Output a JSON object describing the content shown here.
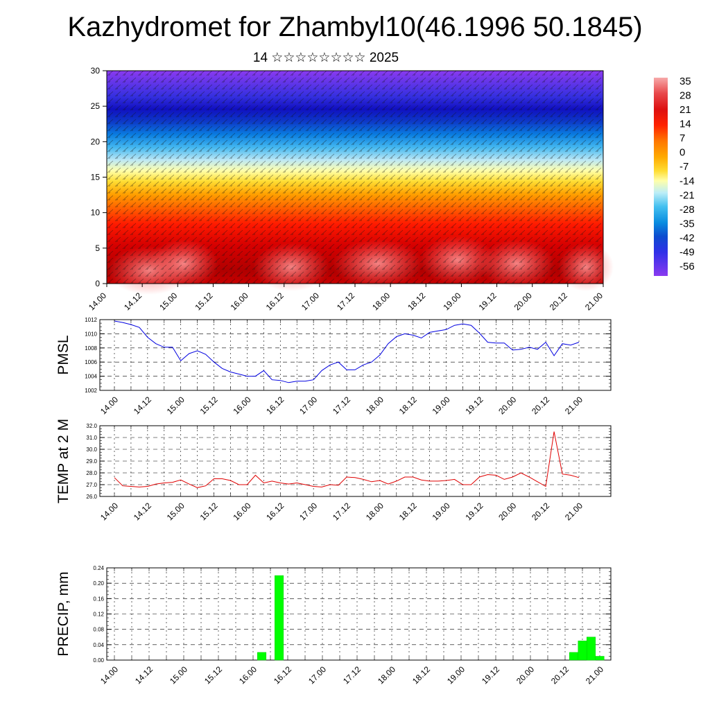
{
  "title": "Kazhydromet for Zhambyl10(46.1996 50.1845)",
  "subtitle": "14 ☆☆☆☆☆☆☆☆ 2025",
  "colors": {
    "pmsl_line": "#0000e0",
    "temp_line": "#e00000",
    "precip_bar": "#00ff00"
  },
  "chart_data": [
    {
      "type": "heatmap",
      "name": "cross-section",
      "ylim": [
        0,
        30
      ],
      "y_ticks": [
        0,
        5,
        10,
        15,
        20,
        25,
        30
      ],
      "x_ticks": [
        "14.00",
        "14.12",
        "15.00",
        "15.12",
        "16.00",
        "16.12",
        "17.00",
        "17.12",
        "18.00",
        "18.12",
        "19.00",
        "19.12",
        "20.00",
        "20.12",
        "21.00"
      ],
      "colorbar": {
        "labels": [
          "35",
          "28",
          "21",
          "14",
          "7",
          "0",
          "-7",
          "-14",
          "-21",
          "-28",
          "-35",
          "-42",
          "-49",
          "-56"
        ],
        "colors": [
          "#f7aaaa",
          "#e8474a",
          "#dd1010",
          "#ff3300",
          "#ff7700",
          "#ffaa00",
          "#ffdd33",
          "#ffffaa",
          "#bdeef7",
          "#44c0f0",
          "#0a8de0",
          "#0c4ccf",
          "#3030e8",
          "#8a3af0"
        ]
      },
      "grid": false,
      "vectors": true
    },
    {
      "type": "line",
      "name": "PMSL",
      "ylabel": "PMSL",
      "ylim": [
        1002,
        1012
      ],
      "y_ticks": [
        "1002",
        "1004",
        "1006",
        "1008",
        "1010",
        "1012"
      ],
      "x_ticks": [
        "14.00",
        "14.12",
        "15.00",
        "15.12",
        "16.00",
        "16.12",
        "17.00",
        "17.12",
        "18.00",
        "18.12",
        "19.00",
        "19.12",
        "20.00",
        "20.12",
        "21.00"
      ],
      "x": [
        0,
        3,
        6,
        9,
        12,
        15,
        18,
        21,
        24,
        27,
        30,
        33,
        36,
        39,
        42,
        45,
        48,
        51,
        54,
        57,
        60,
        63,
        66,
        69,
        72,
        75,
        78,
        81,
        84,
        87,
        90,
        93,
        96,
        99,
        102,
        105,
        108,
        111,
        114,
        117,
        120,
        123,
        126,
        129,
        132,
        135,
        138,
        141,
        144,
        147,
        150,
        153,
        156,
        159,
        162,
        165,
        168
      ],
      "values": [
        1011.8,
        1011.6,
        1011.3,
        1010.9,
        1009.5,
        1008.6,
        1008.1,
        1008.1,
        1006.2,
        1007.2,
        1007.6,
        1007.1,
        1006.0,
        1005.1,
        1004.6,
        1004.3,
        1004.0,
        1004.0,
        1004.8,
        1003.5,
        1003.4,
        1003.1,
        1003.3,
        1003.3,
        1003.5,
        1004.8,
        1005.6,
        1006.0,
        1004.9,
        1004.9,
        1005.6,
        1006.0,
        1007.0,
        1008.6,
        1009.6,
        1010.0,
        1009.8,
        1009.4,
        1010.2,
        1010.4,
        1010.6,
        1011.2,
        1011.4,
        1011.2,
        1010.1,
        1008.8,
        1008.7,
        1008.7,
        1007.7,
        1007.8,
        1008.1,
        1007.8,
        1008.8,
        1006.9,
        1008.6,
        1008.4,
        1008.8
      ]
    },
    {
      "type": "line",
      "name": "TEMP at 2 M",
      "ylabel": "TEMP at 2 M",
      "ylim": [
        26,
        32
      ],
      "y_ticks": [
        "26.0",
        "27.0",
        "28.0",
        "29.0",
        "30.0",
        "31.0",
        "32.0"
      ],
      "x_ticks": [
        "14.00",
        "14.12",
        "15.00",
        "15.12",
        "16.00",
        "16.12",
        "17.00",
        "17.12",
        "18.00",
        "18.12",
        "19.00",
        "19.12",
        "20.00",
        "20.12",
        "21.00"
      ],
      "x": [
        0,
        3,
        6,
        9,
        12,
        15,
        18,
        21,
        24,
        27,
        30,
        33,
        36,
        39,
        42,
        45,
        48,
        51,
        54,
        57,
        60,
        63,
        66,
        69,
        72,
        75,
        78,
        81,
        84,
        87,
        90,
        93,
        96,
        99,
        102,
        105,
        108,
        111,
        114,
        117,
        120,
        123,
        126,
        129,
        132,
        135,
        138,
        141,
        144,
        147,
        150,
        153,
        156,
        159,
        162,
        165,
        168
      ],
      "values": [
        27.6,
        26.9,
        26.85,
        26.8,
        26.85,
        27.05,
        27.15,
        27.2,
        27.4,
        27.05,
        26.75,
        26.9,
        27.5,
        27.5,
        27.35,
        27.0,
        27.0,
        27.8,
        27.15,
        27.3,
        27.15,
        27.05,
        27.15,
        27.0,
        26.85,
        26.8,
        27.0,
        26.95,
        27.65,
        27.6,
        27.45,
        27.25,
        27.35,
        27.05,
        27.3,
        27.65,
        27.65,
        27.4,
        27.3,
        27.3,
        27.35,
        27.45,
        27.0,
        27.0,
        27.65,
        27.85,
        27.8,
        27.45,
        27.65,
        28.0,
        27.65,
        27.25,
        26.85,
        31.5,
        27.9,
        27.8,
        27.6
      ]
    },
    {
      "type": "bar",
      "name": "PRECIP",
      "ylabel": "PRECIP, mm",
      "ylim": [
        0,
        0.24
      ],
      "y_ticks": [
        "0.00",
        "0.04",
        "0.08",
        "0.12",
        "0.16",
        "0.20",
        "0.24"
      ],
      "x_ticks": [
        "14.00",
        "14.12",
        "15.00",
        "15.12",
        "16.00",
        "16.12",
        "17.00",
        "17.12",
        "18.00",
        "18.12",
        "19.00",
        "19.12",
        "20.00",
        "20.12",
        "21.00"
      ],
      "bars": [
        {
          "x": 51,
          "value": 0.02
        },
        {
          "x": 57,
          "value": 0.22
        },
        {
          "x": 159,
          "value": 0.02
        },
        {
          "x": 162,
          "value": 0.05
        },
        {
          "x": 165,
          "value": 0.06
        },
        {
          "x": 168,
          "value": 0.01
        }
      ]
    }
  ]
}
